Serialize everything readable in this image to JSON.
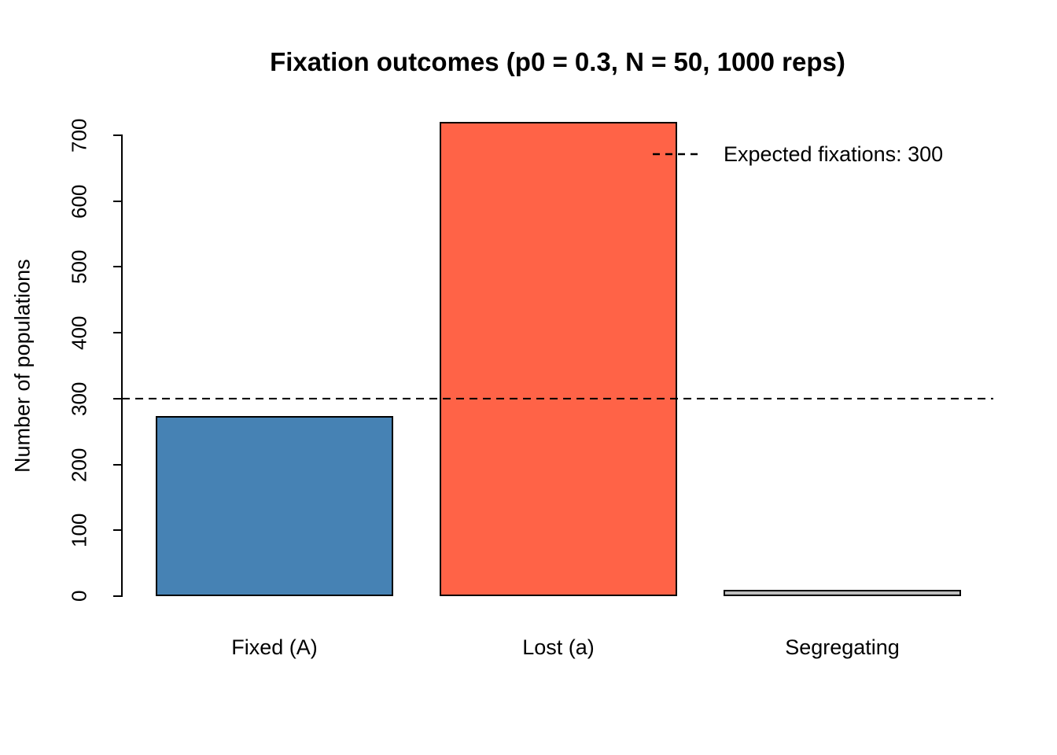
{
  "chart_data": {
    "type": "bar",
    "title": "Fixation outcomes (p0 = 0.3, N = 50, 1000 reps)",
    "xlabel": "",
    "ylabel": "Number of populations",
    "categories": [
      "Fixed (A)",
      "Lost (a)",
      "Segregating"
    ],
    "values": [
      273,
      719,
      8
    ],
    "bar_colors": [
      "#4682B4",
      "#FF6347",
      "#BEBEBE"
    ],
    "bar_border_color": "#000000",
    "ylim": [
      0,
      700
    ],
    "yticks": [
      0,
      100,
      200,
      300,
      400,
      500,
      600,
      700
    ],
    "grid": false,
    "background": "#FFFFFF",
    "reference_line": {
      "value": 300,
      "style": "dashed",
      "color": "#000000"
    },
    "legend": {
      "position": "topright",
      "box": false,
      "entries": [
        {
          "label": "Expected fixations: 300",
          "line_style": "dashed"
        }
      ]
    }
  }
}
